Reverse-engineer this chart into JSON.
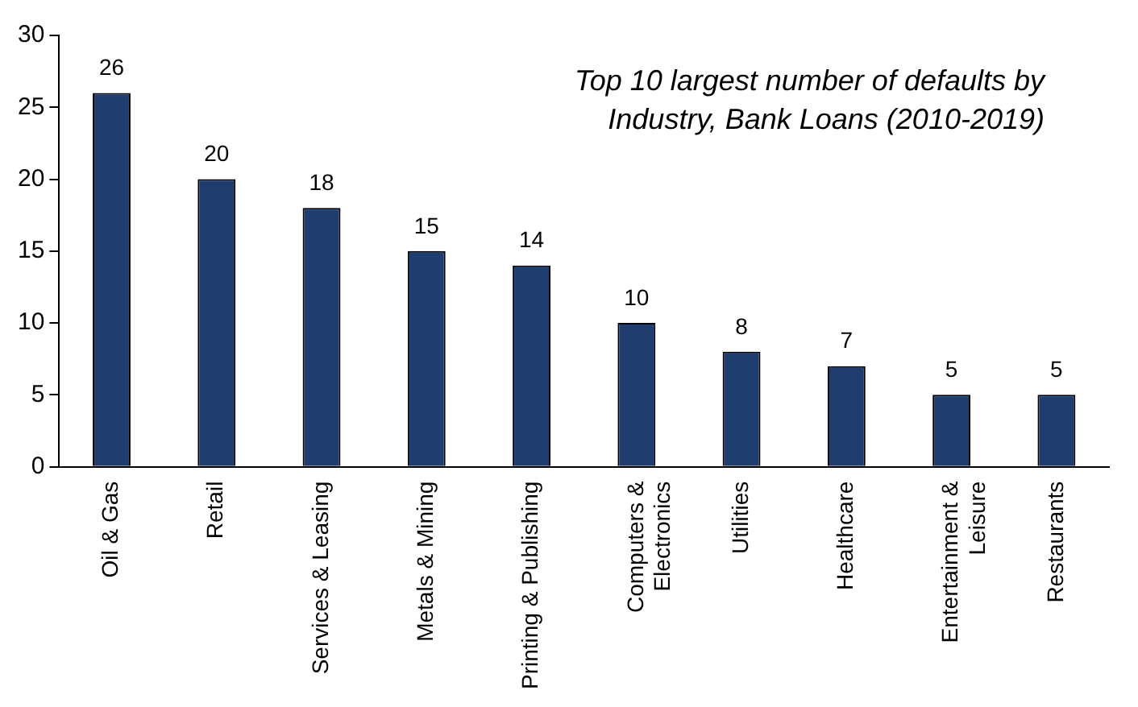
{
  "chart_data": {
    "type": "bar",
    "title": "Top 10 largest number of defaults by Industry, Bank Loans (2010-2019)",
    "categories": [
      "Oil & Gas",
      "Retail",
      "Services & Leasing",
      "Metals & Mining",
      "Printing & Publishing",
      "Computers & Electronics",
      "Utilities",
      "Healthcare",
      "Entertainment & Leisure",
      "Restaurants"
    ],
    "values": [
      26,
      20,
      18,
      15,
      14,
      10,
      8,
      7,
      5,
      5
    ],
    "color": "#1f3d6f",
    "ylim": [
      0,
      30
    ],
    "yticks": [
      0,
      5,
      10,
      15,
      20,
      25,
      30
    ],
    "grid": false,
    "data_labels": true
  }
}
